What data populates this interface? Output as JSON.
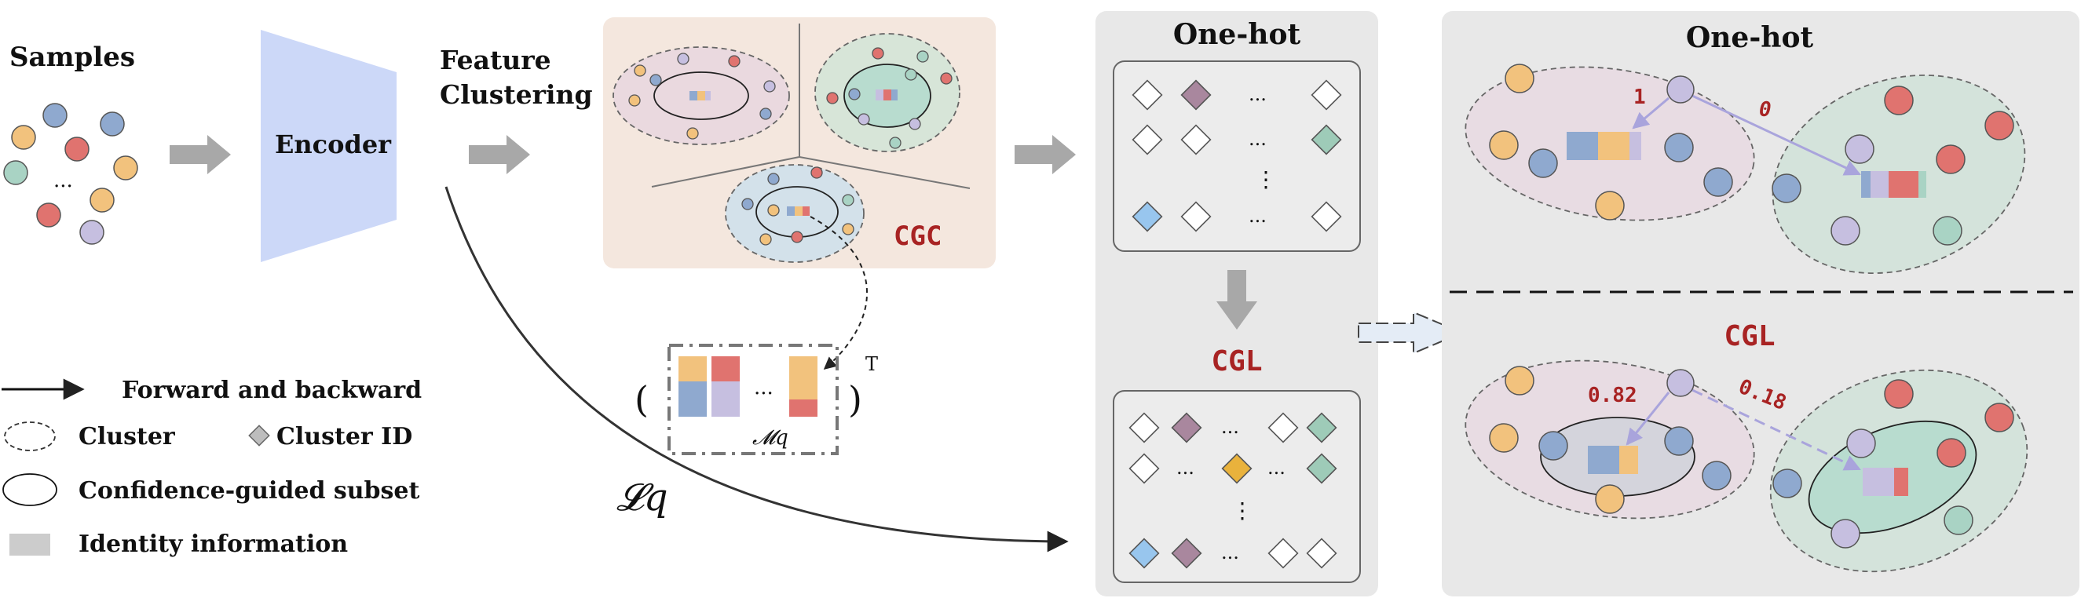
{
  "samples_label": "Samples",
  "encoder_label": "Encoder",
  "feature_clustering_label": [
    "Feature",
    "Clustering"
  ],
  "ellipsis": "...",
  "vdots": "⋮",
  "cgc_label": "CGC",
  "memory_label": "𝓜q",
  "transpose_label": "T",
  "loss_label": "𝓛q",
  "legend": {
    "forward": "Forward and backward",
    "cluster": "Cluster",
    "cluster_id": "Cluster ID",
    "confidence": "Confidence-guided subset",
    "identity": "Identity information"
  },
  "middle_panel": {
    "top_title": "One-hot",
    "bottom_title": "CGL"
  },
  "right_panel": {
    "top_title": "One-hot",
    "bottom_title": "CGL",
    "top_weights": [
      "1",
      "0"
    ],
    "bottom_weights": [
      "0.82",
      "0.18"
    ]
  },
  "colors": {
    "orange": "#f2c27d",
    "blue": "#8fa9cf",
    "red": "#e0736f",
    "teal": "#a9d3c4",
    "purple": "#c6bfe0",
    "diamond_purple": "#a9879e",
    "diamond_teal": "#9ecbb8",
    "diamond_blue": "#98c6ee",
    "diamond_gold": "#e9b23c",
    "accent_red": "#a82323",
    "encoder": "#ccd8f8"
  }
}
